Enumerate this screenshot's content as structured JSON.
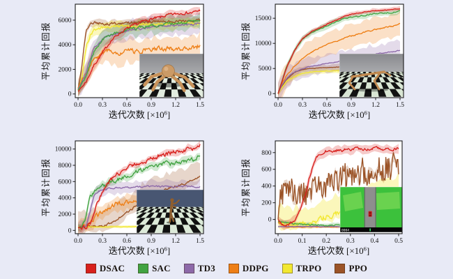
{
  "figure": {
    "background": "#e8eaf6",
    "plot_background": "#ffffff",
    "axis_color": "#1c1c1c"
  },
  "legend": {
    "items": [
      {
        "label": "DSAC",
        "color": "#d8201d"
      },
      {
        "label": "SAC",
        "color": "#42a342"
      },
      {
        "label": "TD3",
        "color": "#8d69a9"
      },
      {
        "label": "DDPG",
        "color": "#ee7f16"
      },
      {
        "label": "TRPO",
        "color": "#f2e832"
      },
      {
        "label": "PPO",
        "color": "#9b5327"
      }
    ]
  },
  "chart_data": [
    {
      "id": "ant",
      "position": "top-left",
      "type": "line",
      "ylabel": "平均累计回报",
      "xlabel_parts": [
        "迭代次数 [×10",
        "6",
        "]"
      ],
      "xlim": [
        0,
        1.5
      ],
      "ylim": [
        -300,
        7300
      ],
      "xticks": [
        "0.0",
        "0.3",
        "0.6",
        "0.9",
        "1.2",
        "1.5"
      ],
      "xtick_vals": [
        0,
        0.3,
        0.6,
        0.9,
        1.2,
        1.5
      ],
      "yticks": [
        "0",
        "2000",
        "4000",
        "6000"
      ],
      "ytick_vals": [
        0,
        2000,
        4000,
        6000
      ],
      "inset": {
        "type": "ant-robot-checkerboard"
      },
      "series": [
        {
          "name": "DSAC",
          "color": "#d8201d",
          "band": 350,
          "noise": 110,
          "x": [
            0,
            0.1,
            0.2,
            0.3,
            0.4,
            0.5,
            0.6,
            0.7,
            0.8,
            0.9,
            1.0,
            1.1,
            1.2,
            1.3,
            1.4,
            1.5
          ],
          "y": [
            200,
            1000,
            2400,
            3300,
            4300,
            4900,
            5300,
            5600,
            5900,
            6100,
            6200,
            6400,
            6500,
            6600,
            6600,
            6800
          ]
        },
        {
          "name": "SAC",
          "color": "#42a342",
          "band": 650,
          "noise": 120,
          "x": [
            0,
            0.1,
            0.2,
            0.3,
            0.4,
            0.5,
            0.6,
            0.7,
            0.8,
            0.9,
            1.0,
            1.1,
            1.2,
            1.3,
            1.4,
            1.5
          ],
          "y": [
            300,
            1500,
            3500,
            4400,
            4800,
            5000,
            5200,
            5300,
            5450,
            5550,
            5600,
            5700,
            5750,
            5800,
            5850,
            5950
          ]
        },
        {
          "name": "TD3",
          "color": "#8d69a9",
          "band": 800,
          "noise": 100,
          "x": [
            0,
            0.1,
            0.2,
            0.3,
            0.4,
            0.5,
            0.6,
            0.7,
            0.8,
            0.9,
            1.0,
            1.1,
            1.2,
            1.3,
            1.4,
            1.5
          ],
          "y": [
            400,
            1800,
            3800,
            4500,
            4800,
            5000,
            5100,
            5250,
            5350,
            5400,
            5500,
            5550,
            5600,
            5650,
            5650,
            5700
          ]
        },
        {
          "name": "DDPG",
          "color": "#ee7f16",
          "band": 1000,
          "noise": 200,
          "x": [
            0,
            0.1,
            0.2,
            0.3,
            0.4,
            0.5,
            0.6,
            0.7,
            0.8,
            0.9,
            1.0,
            1.1,
            1.2,
            1.3,
            1.4,
            1.5
          ],
          "y": [
            500,
            1800,
            2800,
            3300,
            3500,
            3400,
            3500,
            3450,
            3550,
            3600,
            3650,
            3700,
            3650,
            3700,
            3750,
            3900
          ]
        },
        {
          "name": "TRPO",
          "color": "#f2e832",
          "band": 450,
          "noise": 130,
          "x": [
            0,
            0.05,
            0.1,
            0.15,
            0.2,
            0.3,
            0.5,
            0.7,
            0.9,
            1.1,
            1.3,
            1.5
          ],
          "y": [
            300,
            1500,
            3800,
            4800,
            5200,
            5400,
            5500,
            5600,
            5650,
            5700,
            5750,
            5800
          ]
        },
        {
          "name": "PPO",
          "color": "#9b5327",
          "band": 300,
          "noise": 110,
          "x": [
            0,
            0.05,
            0.1,
            0.15,
            0.2,
            0.3,
            0.5,
            0.7,
            0.9,
            1.1,
            1.3,
            1.5
          ],
          "y": [
            300,
            2500,
            5200,
            5700,
            5800,
            5700,
            5750,
            5800,
            5850,
            5900,
            5900,
            6000
          ]
        }
      ]
    },
    {
      "id": "halfcheetah",
      "position": "top-right",
      "type": "line",
      "ylabel": "平均累计回报",
      "xlabel_parts": [
        "迭代次数 [×10",
        "6",
        "]"
      ],
      "xlim": [
        0,
        1.5
      ],
      "ylim": [
        -800,
        17800
      ],
      "xticks": [
        "0.0",
        "0.3",
        "0.6",
        "0.9",
        "1.2",
        "1.5"
      ],
      "xtick_vals": [
        0,
        0.3,
        0.6,
        0.9,
        1.2,
        1.5
      ],
      "yticks": [
        "0",
        "5000",
        "10000",
        "15000"
      ],
      "ytick_vals": [
        0,
        5000,
        10000,
        15000
      ],
      "inset": {
        "type": "halfcheetah-robot-checkerboard"
      },
      "series": [
        {
          "name": "DSAC",
          "color": "#d8201d",
          "band": 450,
          "noise": 90,
          "x": [
            0,
            0.05,
            0.1,
            0.2,
            0.3,
            0.4,
            0.5,
            0.6,
            0.7,
            0.8,
            0.9,
            1.0,
            1.1,
            1.2,
            1.3,
            1.4,
            1.5
          ],
          "y": [
            0,
            2500,
            5000,
            8500,
            11000,
            12200,
            13000,
            13800,
            14500,
            15300,
            15800,
            16100,
            16300,
            16500,
            16600,
            16700,
            16900
          ]
        },
        {
          "name": "SAC",
          "color": "#42a342",
          "band": 600,
          "noise": 110,
          "x": [
            0,
            0.05,
            0.1,
            0.2,
            0.3,
            0.4,
            0.5,
            0.6,
            0.7,
            0.8,
            0.9,
            1.0,
            1.1,
            1.2,
            1.3,
            1.4,
            1.5
          ],
          "y": [
            0,
            2600,
            5200,
            8600,
            10900,
            12000,
            12800,
            13500,
            14200,
            14900,
            15200,
            15400,
            15700,
            15900,
            16000,
            16100,
            16400
          ]
        },
        {
          "name": "TD3",
          "color": "#8d69a9",
          "band": 1900,
          "noise": 80,
          "x": [
            0,
            0.05,
            0.1,
            0.2,
            0.3,
            0.4,
            0.5,
            0.6,
            0.7,
            0.8,
            0.9,
            1.0,
            1.1,
            1.2,
            1.3,
            1.4,
            1.5
          ],
          "y": [
            0,
            1800,
            3000,
            4300,
            5000,
            5400,
            5700,
            6000,
            6300,
            6600,
            7000,
            7300,
            7600,
            7900,
            8100,
            8300,
            8600
          ]
        },
        {
          "name": "DDPG",
          "color": "#ee7f16",
          "band": 2400,
          "noise": 140,
          "x": [
            0,
            0.05,
            0.1,
            0.2,
            0.3,
            0.4,
            0.5,
            0.6,
            0.7,
            0.8,
            0.9,
            1.0,
            1.1,
            1.2,
            1.3,
            1.4,
            1.5
          ],
          "y": [
            0,
            2000,
            3500,
            5500,
            7000,
            8200,
            9000,
            9800,
            10400,
            11000,
            11500,
            12000,
            12400,
            12800,
            13100,
            13400,
            13800
          ]
        },
        {
          "name": "TRPO",
          "color": "#f2e832",
          "band": 500,
          "noise": 60,
          "x": [
            0,
            0.05,
            0.1,
            0.2,
            0.3,
            0.4,
            0.5,
            0.6,
            0.7,
            0.8,
            0.9,
            1.0,
            1.1,
            1.2,
            1.3,
            1.4,
            1.5
          ],
          "y": [
            0,
            1300,
            2400,
            3400,
            4000,
            4300,
            4400,
            4500,
            4550,
            4600,
            4600,
            4650,
            4650,
            4700,
            4700,
            4700,
            4750
          ]
        },
        {
          "name": "PPO",
          "color": "#9b5327",
          "band": 600,
          "noise": 60,
          "x": [
            0,
            0.05,
            0.1,
            0.2,
            0.3,
            0.4,
            0.5,
            0.6,
            0.7,
            0.8,
            0.9,
            1.0,
            1.1,
            1.2,
            1.3,
            1.4,
            1.5
          ],
          "y": [
            0,
            1500,
            2800,
            4200,
            4800,
            5000,
            5100,
            5200,
            5250,
            5300,
            5300,
            5350,
            5350,
            5400,
            5400,
            5400,
            5450
          ]
        }
      ]
    },
    {
      "id": "humanoid",
      "position": "bottom-left",
      "type": "line",
      "ylabel": "平均累计回报",
      "xlabel_parts": [
        "迭代次数 [×10",
        "6",
        "]"
      ],
      "xlim": [
        0,
        1.5
      ],
      "ylim": [
        -400,
        11000
      ],
      "xticks": [
        "0.0",
        "0.3",
        "0.6",
        "0.9",
        "1.2",
        "1.5"
      ],
      "xtick_vals": [
        0,
        0.3,
        0.6,
        0.9,
        1.2,
        1.5
      ],
      "yticks": [
        "0",
        "2000",
        "4000",
        "6000",
        "8000",
        "10000"
      ],
      "ytick_vals": [
        0,
        2000,
        4000,
        6000,
        8000,
        10000
      ],
      "inset": {
        "type": "humanoid-robot-checkerboard"
      },
      "series": [
        {
          "name": "DSAC",
          "color": "#d8201d",
          "band": 400,
          "noise": 260,
          "x": [
            0,
            0.1,
            0.15,
            0.2,
            0.3,
            0.4,
            0.5,
            0.6,
            0.7,
            0.8,
            0.9,
            1.0,
            1.1,
            1.2,
            1.3,
            1.4,
            1.5
          ],
          "y": [
            350,
            450,
            900,
            2500,
            4800,
            6200,
            7000,
            7600,
            8100,
            8500,
            8800,
            9200,
            9400,
            9700,
            9900,
            10100,
            10500
          ]
        },
        {
          "name": "SAC",
          "color": "#42a342",
          "band": 450,
          "noise": 260,
          "x": [
            0,
            0.05,
            0.1,
            0.15,
            0.2,
            0.3,
            0.4,
            0.5,
            0.6,
            0.7,
            0.8,
            0.9,
            1.0,
            1.1,
            1.2,
            1.3,
            1.4,
            1.5
          ],
          "y": [
            350,
            400,
            1500,
            4300,
            4700,
            5400,
            5900,
            6300,
            6700,
            7100,
            7500,
            7800,
            8000,
            8200,
            8300,
            8500,
            8700,
            9000
          ]
        },
        {
          "name": "TD3",
          "color": "#8d69a9",
          "band": 750,
          "noise": 110,
          "x": [
            0,
            0.1,
            0.15,
            0.2,
            0.25,
            0.3,
            0.4,
            0.6,
            0.8,
            1.0,
            1.2,
            1.5
          ],
          "y": [
            350,
            600,
            2500,
            4300,
            4800,
            5000,
            5200,
            5300,
            5350,
            5400,
            5400,
            5400
          ]
        },
        {
          "name": "DDPG",
          "color": "#ee7f16",
          "band": 900,
          "noise": 300,
          "x": [
            0,
            0.1,
            0.2,
            0.3,
            0.4,
            0.5,
            0.6,
            0.7,
            0.8,
            1.0,
            1.2,
            1.5
          ],
          "y": [
            300,
            500,
            1500,
            2300,
            3000,
            3300,
            3500,
            3600,
            3650,
            3700,
            3800,
            3900
          ]
        },
        {
          "name": "TRPO",
          "color": "#f2e832",
          "band": 160,
          "noise": 25,
          "x": [
            0,
            0.5,
            1.0,
            1.5
          ],
          "y": [
            420,
            450,
            460,
            480
          ]
        },
        {
          "name": "PPO",
          "color": "#9b5327",
          "band": [
            700,
            2000
          ],
          "noise": 140,
          "x": [
            0,
            0.3,
            0.4,
            0.5,
            0.6,
            0.7,
            0.8,
            0.9,
            1.0,
            1.1,
            1.2,
            1.3,
            1.4,
            1.5
          ],
          "y": [
            350,
            500,
            900,
            1500,
            2200,
            2900,
            3600,
            4200,
            4700,
            5100,
            5400,
            5700,
            6100,
            6700
          ]
        }
      ]
    },
    {
      "id": "driving",
      "position": "bottom-right",
      "type": "line",
      "ylabel": "平均累计回报",
      "xlabel_parts": [
        "迭代次数 [×10",
        "6",
        "]"
      ],
      "xlim": [
        0,
        0.5
      ],
      "ylim": [
        -170,
        940
      ],
      "xticks": [
        "0.0",
        "0.1",
        "0.2",
        "0.3",
        "0.4",
        "0.5"
      ],
      "xtick_vals": [
        0,
        0.1,
        0.2,
        0.3,
        0.4,
        0.5
      ],
      "yticks": [
        "0",
        "200",
        "400",
        "600",
        "800"
      ],
      "ytick_vals": [
        0,
        200,
        400,
        600,
        800
      ],
      "inset": {
        "type": "driving-topdown-road",
        "hud_text": "0004"
      },
      "series": [
        {
          "name": "DSAC",
          "color": "#d8201d",
          "band": 55,
          "noise": 18,
          "x": [
            0,
            0.02,
            0.05,
            0.07,
            0.09,
            0.11,
            0.13,
            0.15,
            0.17,
            0.2,
            0.25,
            0.3,
            0.35,
            0.4,
            0.45,
            0.5
          ],
          "y": [
            0,
            -60,
            -50,
            0,
            100,
            250,
            500,
            700,
            790,
            820,
            830,
            840,
            845,
            850,
            840,
            850
          ]
        },
        {
          "name": "SAC",
          "color": "#42a342",
          "band": 25,
          "noise": 8,
          "x": [
            0,
            0.1,
            0.2,
            0.3,
            0.4,
            0.5
          ],
          "y": [
            -25,
            -60,
            -70,
            -70,
            -75,
            -70
          ]
        },
        {
          "name": "TD3",
          "color": "#8d69a9",
          "band": 12,
          "noise": 4,
          "x": [
            0,
            0.25,
            0.5
          ],
          "y": [
            -85,
            -85,
            -85
          ]
        },
        {
          "name": "DDPG",
          "color": "#ee7f16",
          "band": 15,
          "noise": 4,
          "x": [
            0,
            0.03,
            0.25,
            0.5
          ],
          "y": [
            -30,
            -90,
            -90,
            -90
          ]
        },
        {
          "name": "TRPO",
          "color": "#f2e832",
          "band": [
            60,
            220
          ],
          "noise": 35,
          "x": [
            0,
            0.05,
            0.1,
            0.15,
            0.2,
            0.25,
            0.3,
            0.35,
            0.4,
            0.45,
            0.5
          ],
          "y": [
            -40,
            -60,
            -60,
            -20,
            30,
            80,
            120,
            160,
            220,
            280,
            340
          ]
        },
        {
          "name": "PPO",
          "color": "#9b5327",
          "band": 40,
          "noise": 110,
          "corr": 0.15,
          "x": [
            0,
            0.01,
            0.03,
            0.05,
            0.07,
            0.1,
            0.15,
            0.2,
            0.25,
            0.3,
            0.35,
            0.4,
            0.45,
            0.5
          ],
          "y": [
            0,
            350,
            320,
            370,
            250,
            300,
            380,
            420,
            470,
            520,
            560,
            580,
            620,
            640
          ]
        }
      ]
    }
  ]
}
